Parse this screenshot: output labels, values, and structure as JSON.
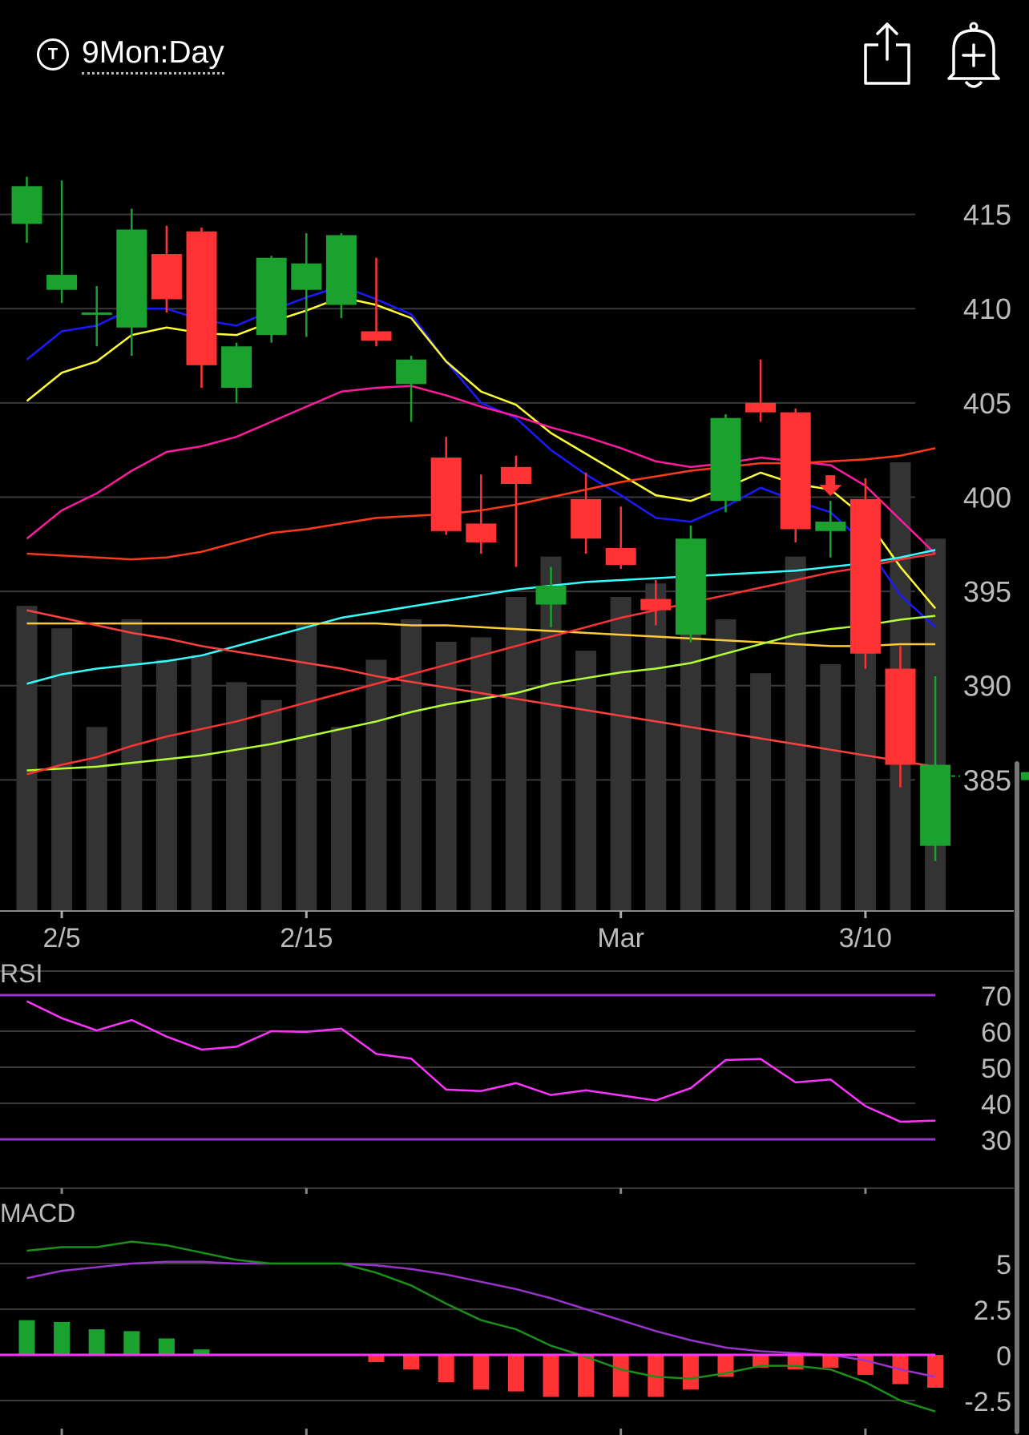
{
  "header": {
    "period_icon_glyph": "T",
    "period_label": "9Mon:Day",
    "share_icon": "share-icon",
    "alert_icon": "add-alert-bell-icon"
  },
  "colors": {
    "background": "#000000",
    "up": "#1aa12e",
    "down": "#ff3333",
    "volume": "#333333",
    "grid": "#3a3a3a",
    "axis_text": "#bbbbbb",
    "rsi_line": "#ff33ff",
    "rsi_band": "#9933cc",
    "macd_line": "#1a8f1a",
    "macd_signal": "#9933cc",
    "macd_zero": "#ff33ff"
  },
  "chart_data": [
    {
      "type": "candlestick",
      "panel": "price",
      "y_ticks": [
        415,
        410,
        405,
        400,
        395,
        390,
        385
      ],
      "ylim": [
        378,
        420
      ],
      "x_labels": [
        {
          "label": "2/5",
          "index": 1
        },
        {
          "label": "2/15",
          "index": 8
        },
        {
          "label": "Mar",
          "index": 17
        },
        {
          "label": "3/10",
          "index": 24
        }
      ],
      "current_price": 385.2,
      "sell_signal_index": 23,
      "candles": [
        {
          "o": 414.5,
          "c": 416.5,
          "h": 417.0,
          "l": 413.5
        },
        {
          "o": 411.0,
          "c": 411.8,
          "h": 416.8,
          "l": 410.3
        },
        {
          "o": 409.8,
          "c": 409.8,
          "h": 411.2,
          "l": 408.0
        },
        {
          "o": 409.0,
          "c": 414.2,
          "h": 415.3,
          "l": 407.5
        },
        {
          "o": 412.9,
          "c": 410.5,
          "h": 414.4,
          "l": 409.8
        },
        {
          "o": 414.1,
          "c": 407.0,
          "h": 414.3,
          "l": 405.8
        },
        {
          "o": 405.8,
          "c": 408.0,
          "h": 408.2,
          "l": 405.0
        },
        {
          "o": 408.6,
          "c": 412.7,
          "h": 412.8,
          "l": 408.2
        },
        {
          "o": 411.0,
          "c": 412.4,
          "h": 414.0,
          "l": 408.5
        },
        {
          "o": 410.2,
          "c": 413.9,
          "h": 414.0,
          "l": 409.5
        },
        {
          "o": 408.8,
          "c": 408.3,
          "h": 412.7,
          "l": 408.0
        },
        {
          "o": 406.0,
          "c": 407.3,
          "h": 407.5,
          "l": 404.0
        },
        {
          "o": 402.1,
          "c": 398.2,
          "h": 403.2,
          "l": 398.0
        },
        {
          "o": 398.6,
          "c": 397.6,
          "h": 401.2,
          "l": 397.0
        },
        {
          "o": 401.6,
          "c": 400.7,
          "h": 402.2,
          "l": 396.3
        },
        {
          "o": 394.3,
          "c": 395.3,
          "h": 396.3,
          "l": 393.1
        },
        {
          "o": 399.9,
          "c": 397.8,
          "h": 401.3,
          "l": 397.0
        },
        {
          "o": 397.3,
          "c": 396.4,
          "h": 399.5,
          "l": 396.2
        },
        {
          "o": 394.6,
          "c": 394.0,
          "h": 395.6,
          "l": 393.2
        },
        {
          "o": 392.7,
          "c": 397.8,
          "h": 398.5,
          "l": 392.3
        },
        {
          "o": 399.8,
          "c": 404.2,
          "h": 404.4,
          "l": 399.2
        },
        {
          "o": 405.0,
          "c": 404.5,
          "h": 407.3,
          "l": 404.0
        },
        {
          "o": 404.5,
          "c": 398.3,
          "h": 404.7,
          "l": 397.6
        },
        {
          "o": 398.2,
          "c": 398.7,
          "h": 399.8,
          "l": 396.8
        },
        {
          "o": 399.9,
          "c": 391.7,
          "h": 401.0,
          "l": 390.9
        },
        {
          "o": 390.9,
          "c": 385.8,
          "h": 392.1,
          "l": 384.6
        },
        {
          "o": 381.5,
          "c": 385.8,
          "h": 390.5,
          "l": 380.7
        }
      ],
      "volume": [
        0.68,
        0.63,
        0.41,
        0.65,
        0.56,
        0.57,
        0.51,
        0.47,
        0.64,
        0.41,
        0.56,
        0.65,
        0.6,
        0.61,
        0.7,
        0.79,
        0.58,
        0.7,
        0.73,
        0.62,
        0.65,
        0.53,
        0.79,
        0.55,
        0.8,
        1.0,
        0.83
      ],
      "volume_note": "relative bar heights",
      "moving_averages": [
        {
          "color": "#1a1aff",
          "values": [
            407.3,
            408.8,
            409.1,
            410.0,
            410.0,
            409.4,
            409.1,
            409.9,
            410.6,
            411.2,
            410.5,
            409.7,
            407.2,
            405.0,
            404.2,
            402.5,
            401.2,
            400.1,
            398.9,
            398.7,
            399.5,
            400.5,
            399.8,
            399.2,
            397.5,
            394.8,
            393.1
          ]
        },
        {
          "color": "#ffff33",
          "values": [
            405.1,
            406.6,
            407.2,
            408.6,
            409.0,
            408.7,
            408.6,
            409.3,
            409.9,
            410.6,
            410.2,
            409.5,
            407.2,
            405.6,
            404.9,
            403.4,
            402.3,
            401.2,
            400.1,
            399.8,
            400.5,
            401.3,
            400.7,
            400.4,
            398.9,
            396.3,
            394.1
          ]
        },
        {
          "color": "#ff1a9e",
          "values": [
            397.8,
            399.3,
            400.2,
            401.4,
            402.4,
            402.7,
            403.2,
            404.0,
            404.8,
            405.6,
            405.8,
            405.9,
            405.4,
            404.8,
            404.3,
            403.7,
            403.2,
            402.6,
            401.9,
            401.6,
            401.8,
            402.1,
            401.9,
            401.7,
            400.6,
            398.8,
            397.0
          ]
        },
        {
          "color": "#ff3a1a",
          "values": [
            397.0,
            396.9,
            396.8,
            396.7,
            396.8,
            397.1,
            397.6,
            398.1,
            398.3,
            398.6,
            398.9,
            399.0,
            399.1,
            399.3,
            399.6,
            400.0,
            400.4,
            400.8,
            401.1,
            401.4,
            401.6,
            401.8,
            401.8,
            401.9,
            402.0,
            402.2,
            402.6
          ]
        },
        {
          "color": "#33ffff",
          "values": [
            390.1,
            390.6,
            390.9,
            391.1,
            391.3,
            391.6,
            392.1,
            392.6,
            393.1,
            393.6,
            393.9,
            394.2,
            394.5,
            394.8,
            395.1,
            395.3,
            395.5,
            395.6,
            395.7,
            395.8,
            395.9,
            396.0,
            396.1,
            396.3,
            396.5,
            396.8,
            397.2
          ]
        },
        {
          "color": "#ffcc33",
          "values": [
            393.3,
            393.3,
            393.3,
            393.3,
            393.3,
            393.3,
            393.3,
            393.3,
            393.3,
            393.3,
            393.3,
            393.2,
            393.2,
            393.1,
            393.0,
            392.9,
            392.8,
            392.7,
            392.6,
            392.5,
            392.4,
            392.3,
            392.2,
            392.1,
            392.1,
            392.2,
            392.2
          ]
        },
        {
          "color": "#b3ff33",
          "values": [
            385.5,
            385.6,
            385.7,
            385.9,
            386.1,
            386.3,
            386.6,
            386.9,
            387.3,
            387.7,
            388.1,
            388.6,
            389.0,
            389.3,
            389.6,
            390.1,
            390.4,
            390.7,
            390.9,
            391.2,
            391.7,
            392.2,
            392.7,
            393.0,
            393.2,
            393.5,
            393.7
          ]
        },
        {
          "color": "#ff3333",
          "values": [
            385.3,
            385.8,
            386.2,
            386.8,
            387.3,
            387.7,
            388.1,
            388.6,
            389.1,
            389.6,
            390.1,
            390.6,
            391.1,
            391.6,
            392.1,
            392.6,
            393.1,
            393.6,
            394.0,
            394.4,
            394.8,
            395.2,
            395.6,
            396.0,
            396.3,
            396.7,
            397.0
          ]
        },
        {
          "color": "#ff4040",
          "values": [
            394.0,
            393.6,
            393.2,
            392.8,
            392.5,
            392.1,
            391.8,
            391.5,
            391.2,
            390.9,
            390.5,
            390.2,
            389.9,
            389.6,
            389.3,
            389.0,
            388.7,
            388.4,
            388.1,
            387.8,
            387.5,
            387.2,
            386.9,
            386.6,
            386.3,
            386.0,
            385.7
          ]
        }
      ]
    },
    {
      "type": "line",
      "panel": "rsi",
      "label": "RSI",
      "y_ticks": [
        70,
        60,
        50,
        40,
        30
      ],
      "ylim": [
        26,
        74
      ],
      "bands": [
        70,
        30
      ],
      "values": [
        68.3,
        63.6,
        60.2,
        63.1,
        58.5,
        54.9,
        55.7,
        60.0,
        59.8,
        60.7,
        53.7,
        52.4,
        43.8,
        43.4,
        45.6,
        42.3,
        43.6,
        42.2,
        40.8,
        44.2,
        52.0,
        52.3,
        45.8,
        46.6,
        39.2,
        34.9,
        35.2
      ]
    },
    {
      "type": "bar+line",
      "panel": "macd",
      "label": "MACD",
      "y_ticks": [
        5,
        2.5,
        0,
        -2.5
      ],
      "ylim": [
        -4,
        6
      ],
      "histogram": [
        1.9,
        1.8,
        1.4,
        1.3,
        0.9,
        0.3,
        0,
        0,
        0,
        0,
        -0.4,
        -0.8,
        -1.5,
        -1.9,
        -2.0,
        -2.3,
        -2.3,
        -2.3,
        -2.3,
        -1.9,
        -1.2,
        -0.7,
        -0.8,
        -0.7,
        -1.1,
        -1.6,
        -1.8
      ],
      "macd": [
        5.7,
        5.9,
        5.9,
        6.2,
        6.0,
        5.6,
        5.2,
        5.0,
        5.0,
        5.0,
        4.5,
        3.8,
        2.8,
        1.9,
        1.4,
        0.5,
        -0.1,
        -0.8,
        -1.2,
        -1.3,
        -1.0,
        -0.6,
        -0.6,
        -0.8,
        -1.5,
        -2.5,
        -3.1
      ],
      "signal": [
        4.2,
        4.6,
        4.8,
        5.0,
        5.1,
        5.1,
        5.0,
        5.0,
        5.0,
        5.0,
        4.9,
        4.7,
        4.4,
        4.0,
        3.6,
        3.1,
        2.5,
        1.9,
        1.3,
        0.8,
        0.4,
        0.2,
        0.1,
        0,
        -0.3,
        -0.8,
        -1.2
      ]
    }
  ]
}
